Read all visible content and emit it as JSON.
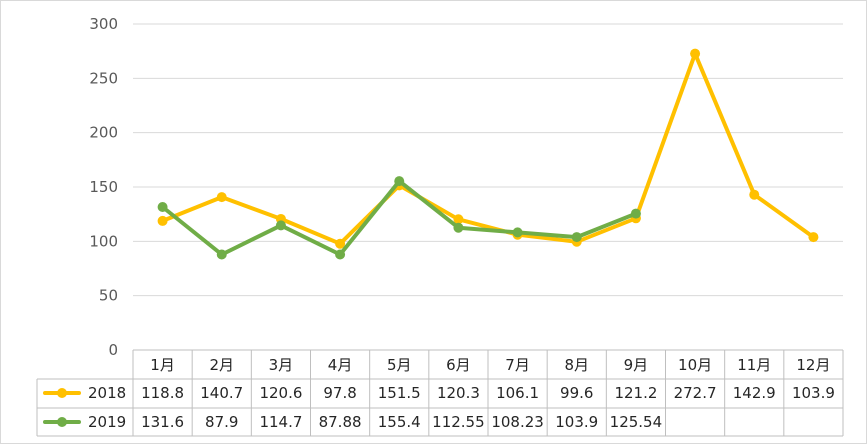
{
  "chart_data": {
    "type": "line",
    "categories": [
      "1月",
      "2月",
      "3月",
      "4月",
      "5月",
      "6月",
      "7月",
      "8月",
      "9月",
      "10月",
      "11月",
      "12月"
    ],
    "ylim": [
      0,
      300
    ],
    "yticks": [
      "0",
      "50",
      "100",
      "150",
      "200",
      "250",
      "300"
    ],
    "grid": true,
    "legend_placement": "data-table",
    "series": [
      {
        "name": "2018",
        "color": "#FFC000",
        "values": [
          118.8,
          140.7,
          120.6,
          97.8,
          151.5,
          120.3,
          106.1,
          99.6,
          121.2,
          272.7,
          142.9,
          103.9
        ],
        "labels": [
          "118.8",
          "140.7",
          "120.6",
          "97.8",
          "151.5",
          "120.3",
          "106.1",
          "99.6",
          "121.2",
          "272.7",
          "142.9",
          "103.9"
        ]
      },
      {
        "name": "2019",
        "color": "#70AD47",
        "values": [
          131.6,
          87.9,
          114.7,
          87.88,
          155.4,
          112.55,
          108.23,
          103.9,
          125.54,
          null,
          null,
          null
        ],
        "labels": [
          "131.6",
          "87.9",
          "114.7",
          "87.88",
          "155.4",
          "112.55",
          "108.23",
          "103.9",
          "125.54",
          "",
          "",
          ""
        ]
      }
    ]
  }
}
